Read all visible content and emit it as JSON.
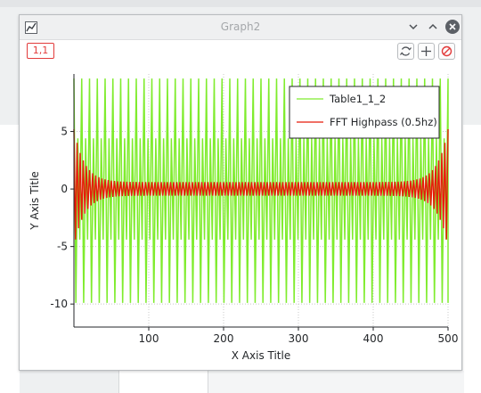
{
  "window": {
    "title": "Graph2"
  },
  "toolbar": {
    "layer_label": "1,1"
  },
  "colors": {
    "series1": "#7fec2d",
    "series2": "#e81b0b",
    "accent": "#e23b3b"
  },
  "icons": [
    "graph-icon",
    "minimize-icon",
    "maximize-icon",
    "close-icon",
    "rescale-icon",
    "add-layer-icon",
    "remove-layer-icon"
  ],
  "chart_data": {
    "type": "line",
    "xlabel": "X Axis Title",
    "ylabel": "Y Axis Title",
    "xlim": [
      0,
      500
    ],
    "ylim": [
      -12,
      10
    ],
    "x_ticks": [
      100,
      200,
      300,
      400,
      500
    ],
    "y_ticks": [
      5,
      0,
      -5,
      -10
    ],
    "legend_position": "top-right",
    "series": [
      {
        "name": "Table1_1_2",
        "color": "#7fec2d",
        "x_range": [
          0,
          500
        ],
        "peak_high": 9.6,
        "peak_low": -9.9,
        "inner_high": 4.4,
        "inner_low": -4.4
      },
      {
        "name": "FFT Highpass (0.5hz)",
        "color": "#e81b0b",
        "x_range": [
          0,
          500
        ],
        "edge_high": 5.2,
        "edge_low": -5.0,
        "center_high": 0.6,
        "center_low": -0.6
      }
    ]
  }
}
